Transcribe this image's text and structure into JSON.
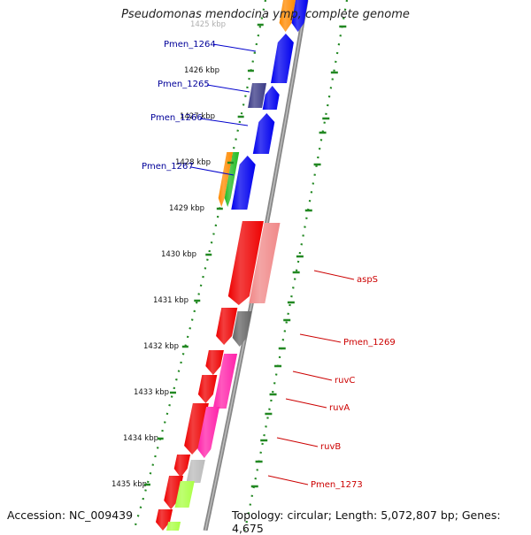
{
  "title": "Pseudomonas mendocina ymp, complete genome",
  "footer": {
    "accession": "Accession: NC_009439",
    "topology": "Topology: circular; Length: 5,072,807 bp; Genes: 4,675"
  },
  "kbp_ticks": [
    "1425 kbp",
    "1426 kbp",
    "1427 kbp",
    "1428 kbp",
    "1429 kbp",
    "1430 kbp",
    "1431 kbp",
    "1432 kbp",
    "1433 kbp",
    "1434 kbp",
    "1435 kbp"
  ],
  "gene_labels_left": [
    "Pmen_1264",
    "Pmen_1265",
    "Pmen_1266",
    "Pmen_1267"
  ],
  "gene_labels_right": [
    "aspS",
    "Pmen_1269",
    "ruvC",
    "ruvA",
    "ruvB",
    "Pmen_1273"
  ],
  "colors": {
    "blue": "#0000ee",
    "dark_blue": "#3a3a86",
    "red": "#ee0000",
    "salmon": "#f08888",
    "gray": "#666666",
    "magenta": "#ff22aa",
    "orange": "#ff8a00",
    "green": "#22bb22",
    "lime": "#aaff44",
    "light_gray": "#bbbbbb",
    "tick_green": "#228822",
    "left_label": "#000099",
    "right_label": "#cc0000"
  }
}
